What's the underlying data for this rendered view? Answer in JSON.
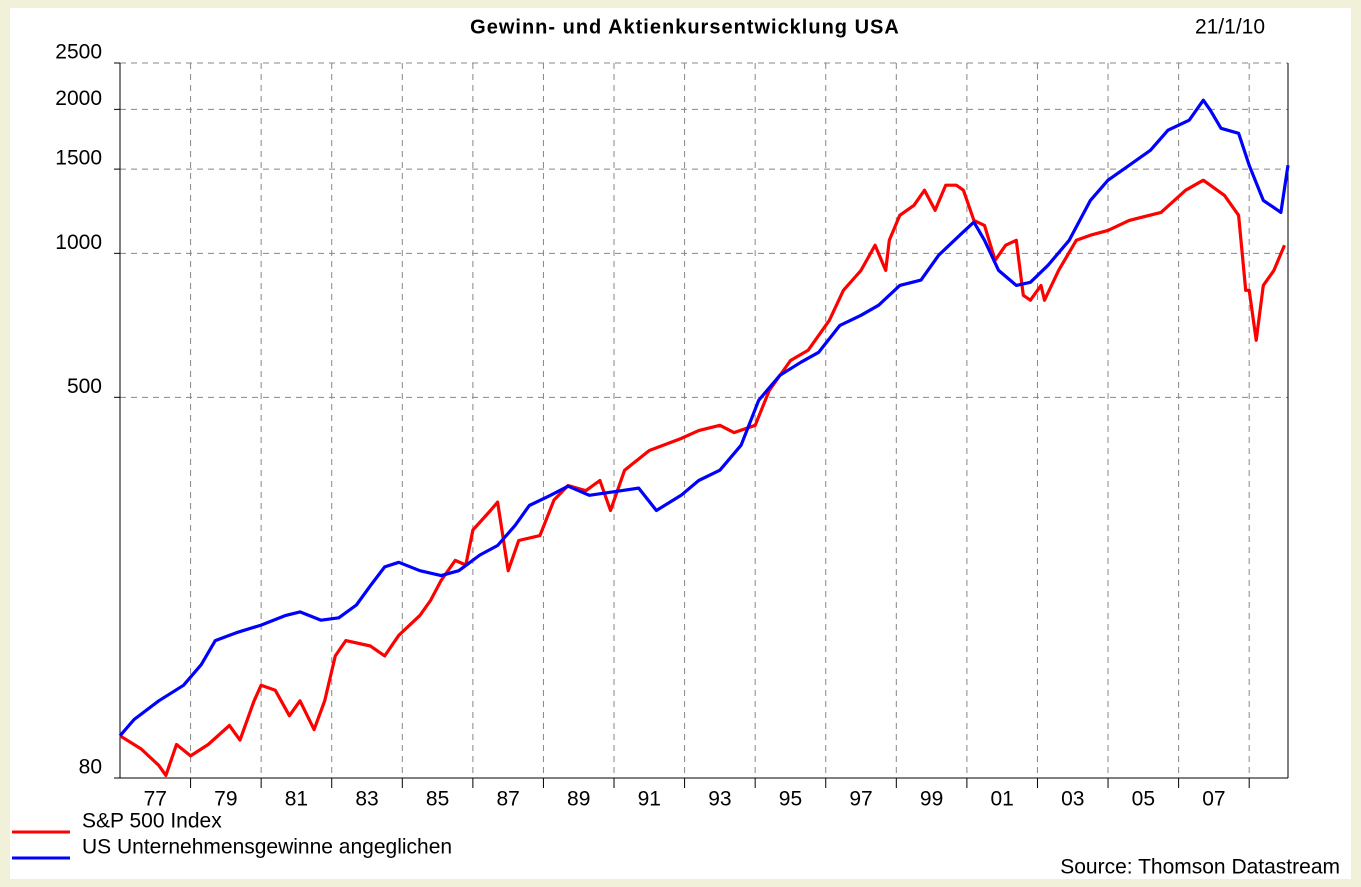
{
  "chart_data": {
    "type": "line",
    "title": "Gewinn- und Aktienkursentwicklung USA",
    "date": "21/1/10",
    "source": "Source: Thomson Datastream",
    "log_scale": true,
    "grid": true,
    "legend": "bottom-left",
    "xlim": [
      1976,
      2009.1
    ],
    "xticks": [
      {
        "value": 1977,
        "label": "77"
      },
      {
        "value": 1979,
        "label": "79"
      },
      {
        "value": 1981,
        "label": "81"
      },
      {
        "value": 1983,
        "label": "83"
      },
      {
        "value": 1985,
        "label": "85"
      },
      {
        "value": 1987,
        "label": "87"
      },
      {
        "value": 1989,
        "label": "89"
      },
      {
        "value": 1991,
        "label": "91"
      },
      {
        "value": 1993,
        "label": "93"
      },
      {
        "value": 1995,
        "label": "95"
      },
      {
        "value": 1997,
        "label": "97"
      },
      {
        "value": 1999,
        "label": "99"
      },
      {
        "value": 2001,
        "label": "01"
      },
      {
        "value": 2003,
        "label": "03"
      },
      {
        "value": 2005,
        "label": "05"
      },
      {
        "value": 2007,
        "label": "07"
      }
    ],
    "xgrid": [
      1978,
      1980,
      1982,
      1984,
      1986,
      1988,
      1990,
      1992,
      1994,
      1996,
      1998,
      2000,
      2002,
      2004,
      2006,
      2008
    ],
    "ylim": [
      80,
      2500
    ],
    "yticks": [
      80,
      500,
      1000,
      1500,
      2000,
      2500
    ],
    "series": [
      {
        "name": "S&P 500 Index",
        "color": "#ff0000",
        "x": [
          1976.0,
          1976.6,
          1977.1,
          1977.3,
          1977.6,
          1978.0,
          1978.5,
          1979.1,
          1979.4,
          1979.8,
          1980.0,
          1980.4,
          1980.8,
          1981.1,
          1981.5,
          1981.8,
          1982.1,
          1982.4,
          1983.1,
          1983.5,
          1983.9,
          1984.5,
          1984.8,
          1985.1,
          1985.5,
          1985.8,
          1986.0,
          1986.5,
          1986.7,
          1987.0,
          1987.3,
          1987.9,
          1988.3,
          1988.7,
          1989.2,
          1989.6,
          1989.9,
          1990.3,
          1991.0,
          1991.9,
          1992.4,
          1993.0,
          1993.4,
          1994.0,
          1994.4,
          1995.0,
          1995.5,
          1996.1,
          1996.5,
          1997.0,
          1997.4,
          1997.7,
          1997.8,
          1998.1,
          1998.5,
          1998.8,
          1999.1,
          1999.4,
          1999.7,
          1999.9,
          2000.2,
          2000.5,
          2000.8,
          2001.1,
          2001.4,
          2001.6,
          2001.8,
          2002.1,
          2002.2,
          2002.6,
          2003.1,
          2003.5,
          2004.0,
          2004.6,
          2005.5,
          2006.2,
          2006.7,
          2007.3,
          2007.7,
          2007.9,
          2008.0,
          2008.2,
          2008.4,
          2008.7,
          2009.0
        ],
        "values": [
          98,
          92,
          85,
          81,
          94,
          89,
          94,
          103,
          96,
          116,
          125,
          122,
          108,
          116,
          101,
          116,
          144,
          155,
          151,
          144,
          159,
          175,
          188,
          207,
          228,
          223,
          264,
          290,
          302,
          217,
          251,
          257,
          305,
          327,
          319,
          335,
          290,
          352,
          387,
          410,
          426,
          437,
          422,
          437,
          517,
          597,
          627,
          724,
          837,
          921,
          1040,
          921,
          1065,
          1201,
          1260,
          1355,
          1230,
          1388,
          1388,
          1355,
          1172,
          1144,
          967,
          1040,
          1065,
          817,
          798,
          857,
          798,
          921,
          1065,
          1091,
          1117,
          1172,
          1218,
          1355,
          1422,
          1322,
          1201,
          837,
          837,
          658,
          857,
          921,
          1040
        ]
      },
      {
        "name": "US Unternehmensgewinne angeglichen",
        "color": "#0000ff",
        "x": [
          1976.0,
          1976.4,
          1977.1,
          1977.8,
          1978.3,
          1978.7,
          1979.3,
          1980.0,
          1980.7,
          1981.1,
          1981.7,
          1982.2,
          1982.7,
          1983.1,
          1983.5,
          1983.9,
          1984.5,
          1985.1,
          1985.6,
          1986.2,
          1986.7,
          1987.2,
          1987.6,
          1988.2,
          1988.7,
          1989.3,
          1990.2,
          1990.7,
          1991.2,
          1991.9,
          1992.4,
          1993.0,
          1993.6,
          1994.1,
          1994.7,
          1995.3,
          1995.8,
          1996.4,
          1997.0,
          1997.5,
          1998.1,
          1998.7,
          1999.2,
          1999.8,
          2000.2,
          2000.5,
          2000.9,
          2001.4,
          2001.8,
          2002.3,
          2002.9,
          2003.5,
          2004.0,
          2004.6,
          2005.2,
          2005.7,
          2006.3,
          2006.7,
          2006.9,
          2007.2,
          2007.7,
          2008.0,
          2008.4,
          2008.9,
          2009.1
        ],
        "values": [
          98,
          106,
          116,
          125,
          138,
          155,
          161,
          167,
          175,
          178,
          171,
          173,
          184,
          202,
          221,
          226,
          217,
          212,
          217,
          234,
          245,
          270,
          297,
          312,
          326,
          312,
          319,
          323,
          290,
          312,
          335,
          352,
          397,
          493,
          556,
          592,
          621,
          707,
          742,
          779,
          857,
          879,
          991,
          1091,
          1162,
          1065,
          921,
          857,
          870,
          944,
          1065,
          1290,
          1422,
          1528,
          1642,
          1809,
          1898,
          2090,
          1991,
          1826,
          1782,
          1528,
          1290,
          1218,
          1528
        ]
      }
    ]
  }
}
